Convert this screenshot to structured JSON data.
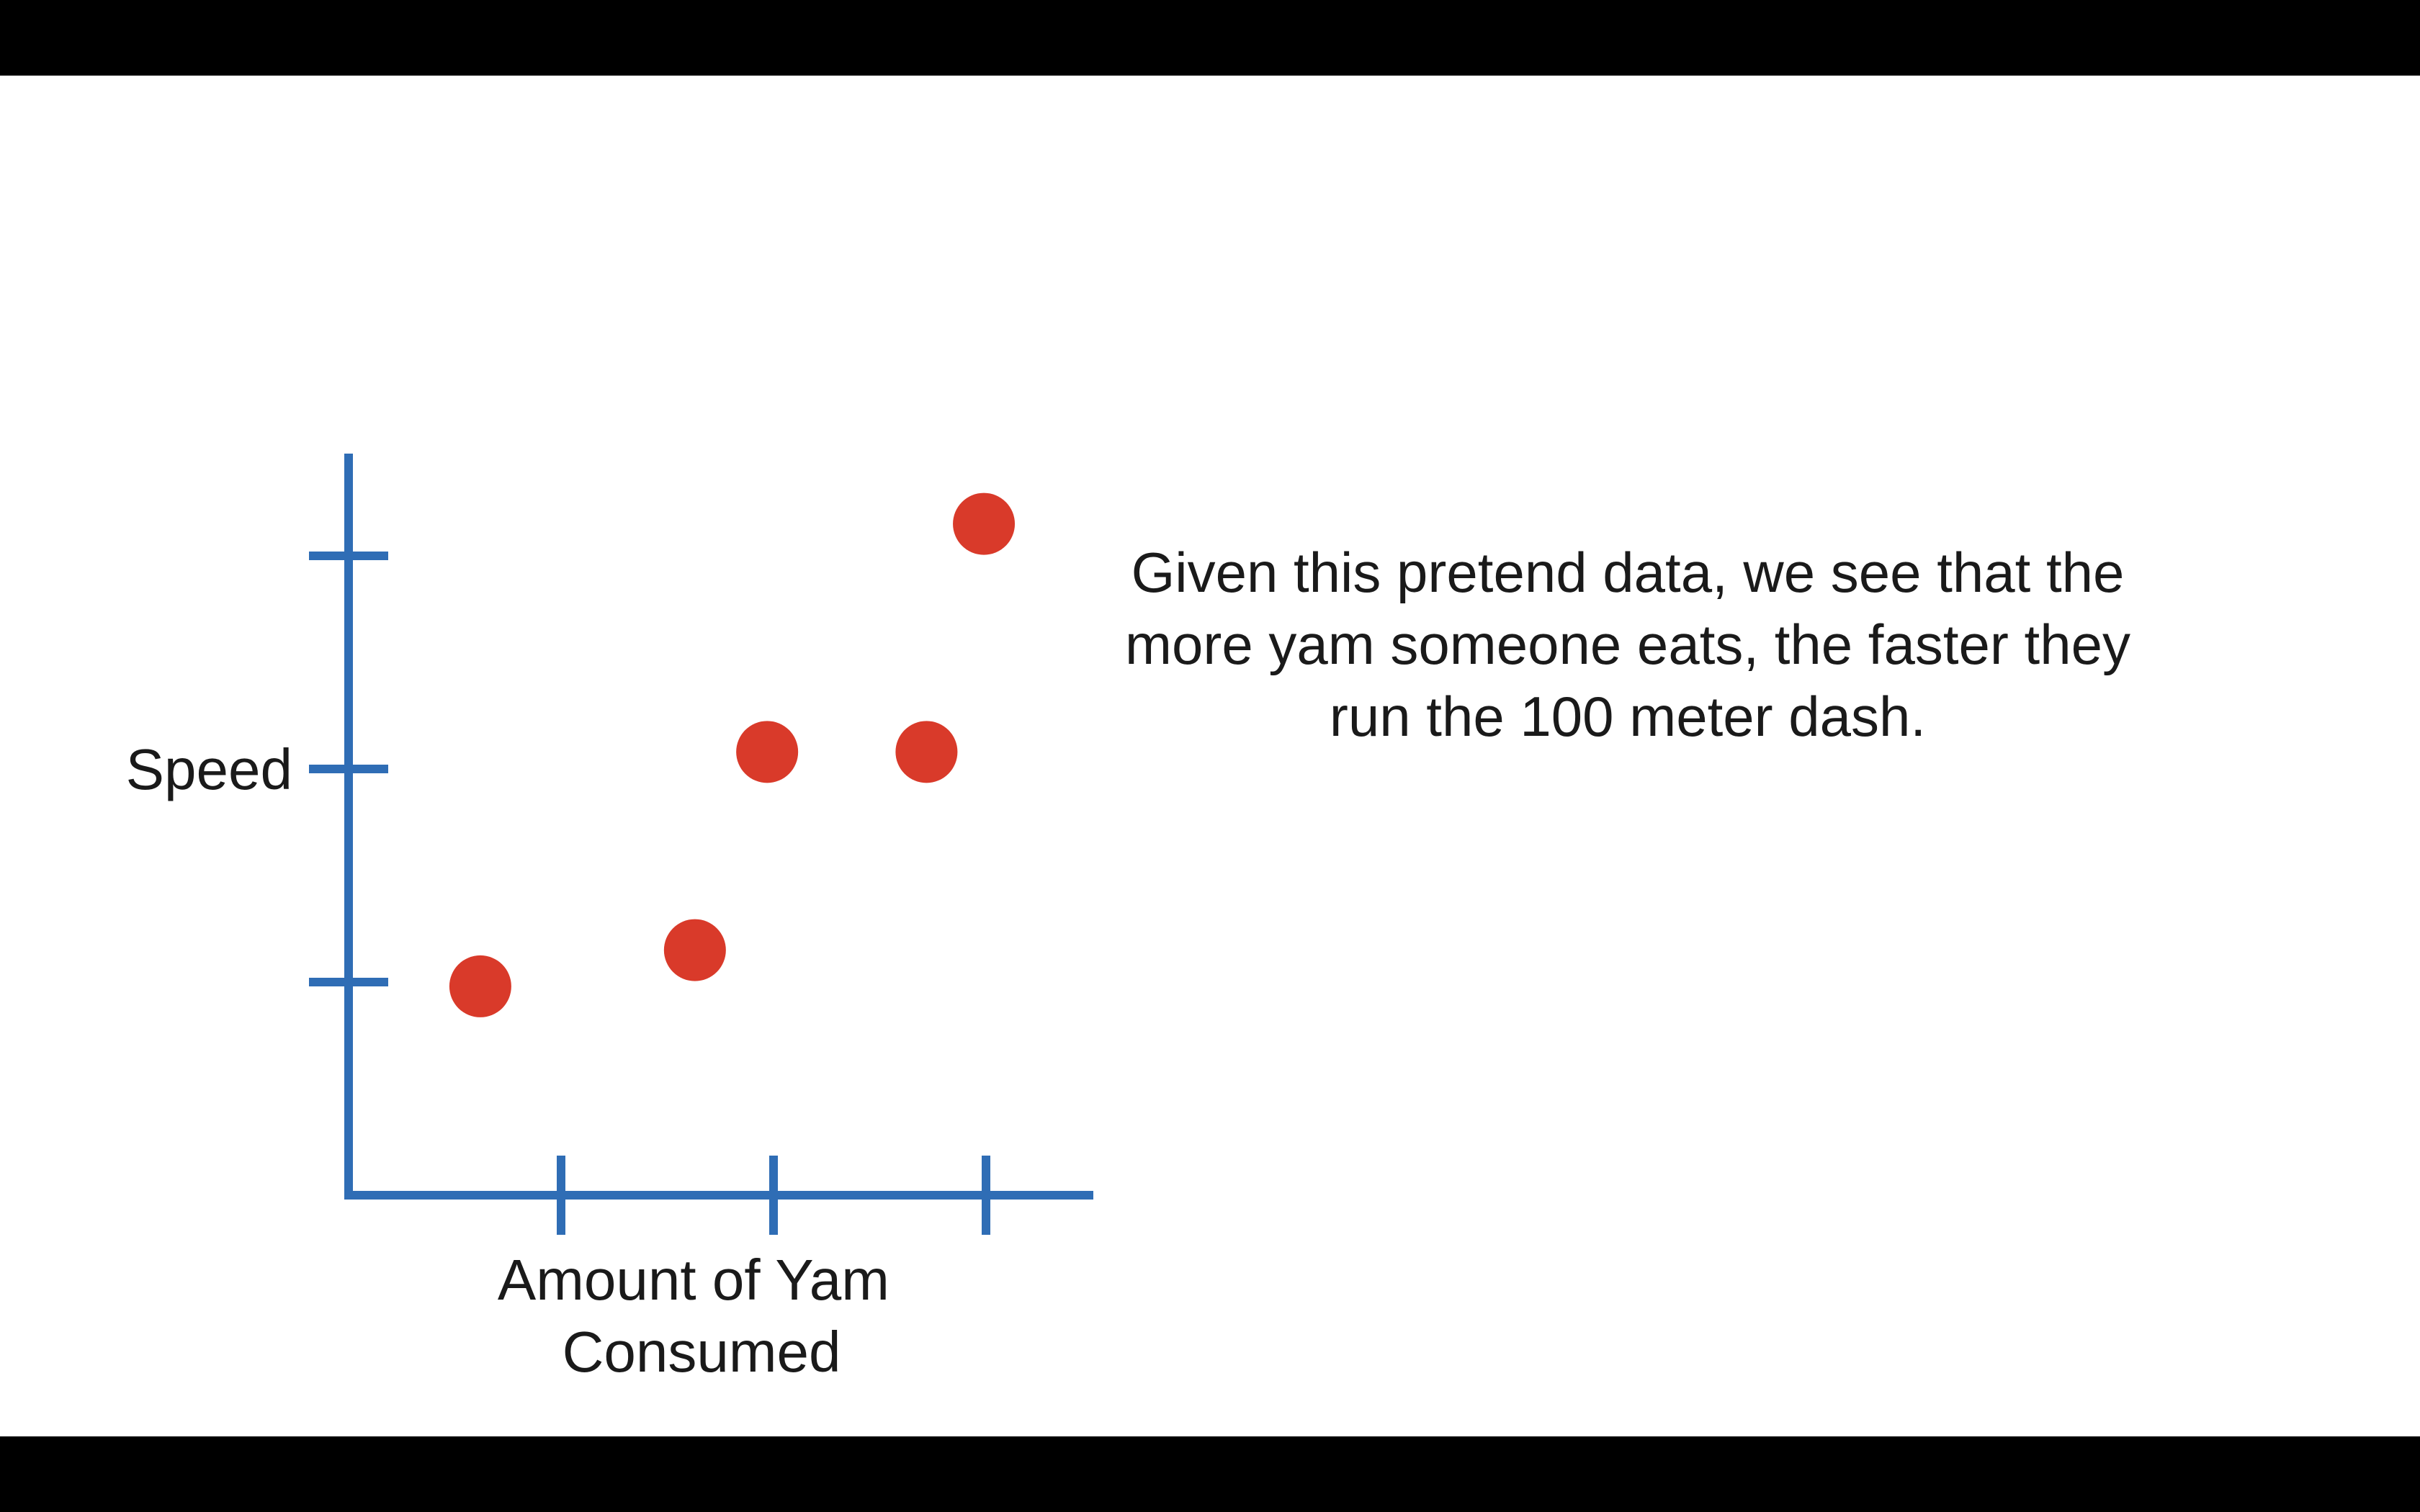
{
  "caption": "Given this pretend data, we see that the more yam someone eats, the faster they run the 100 meter dash.",
  "colors": {
    "axis": "#2f6db5",
    "point": "#d93a2a",
    "background": "#ffffff",
    "letterbox": "#000000",
    "text": "#1a1a1a"
  },
  "chart_data": {
    "type": "scatter",
    "xlabel": "Amount of Yam Consumed",
    "xlabel_lines": [
      "Amount of Yam",
      "Consumed"
    ],
    "ylabel": "Speed",
    "xlim": [
      0,
      3.5
    ],
    "ylim": [
      0,
      3.5
    ],
    "x_ticks": [
      1,
      2,
      3
    ],
    "y_ticks": [
      1,
      2,
      3
    ],
    "grid": false,
    "legend": "none",
    "points": [
      {
        "x": 0.62,
        "y": 0.98
      },
      {
        "x": 1.63,
        "y": 1.15
      },
      {
        "x": 1.97,
        "y": 2.08
      },
      {
        "x": 2.72,
        "y": 2.08
      },
      {
        "x": 2.99,
        "y": 3.15
      }
    ]
  }
}
